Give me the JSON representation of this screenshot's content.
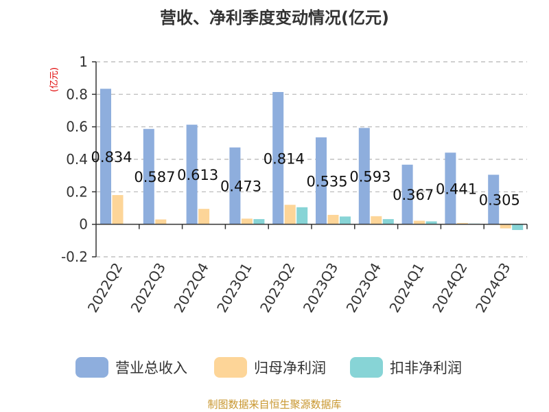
{
  "chart_data": {
    "type": "bar",
    "title": "营收、净利季度变动情况(亿元)",
    "unit_label": "(亿元)",
    "categories": [
      "2022Q2",
      "2022Q3",
      "2022Q4",
      "2023Q1",
      "2023Q2",
      "2023Q3",
      "2023Q4",
      "2024Q1",
      "2024Q2",
      "2024Q3"
    ],
    "series": [
      {
        "name": "营业总收入",
        "color": "#8eaedd",
        "values": [
          0.834,
          0.587,
          0.613,
          0.473,
          0.814,
          0.535,
          0.593,
          0.367,
          0.441,
          0.305
        ]
      },
      {
        "name": "归母净利润",
        "color": "#fdd598",
        "values": [
          0.18,
          0.03,
          0.095,
          0.035,
          0.12,
          0.058,
          0.05,
          0.022,
          0.008,
          -0.025
        ]
      },
      {
        "name": "扣非净利润",
        "color": "#87d4d6",
        "values": [
          0.0,
          0.0,
          0.0,
          0.032,
          0.105,
          0.048,
          0.032,
          0.018,
          0.004,
          -0.035
        ]
      }
    ],
    "data_labels": [
      "0.834",
      "0.587",
      "0.613",
      "0.473",
      "0.814",
      "0.535",
      "0.593",
      "0.367",
      "0.441",
      "0.305"
    ],
    "yticks": [
      "-0.2",
      "0",
      "0.2",
      "0.4",
      "0.6",
      "0.8",
      "1"
    ],
    "ylim": [
      -0.2,
      1
    ],
    "grid": true,
    "legend_position": "bottom",
    "source": "制图数据来自恒生聚源数据库"
  }
}
